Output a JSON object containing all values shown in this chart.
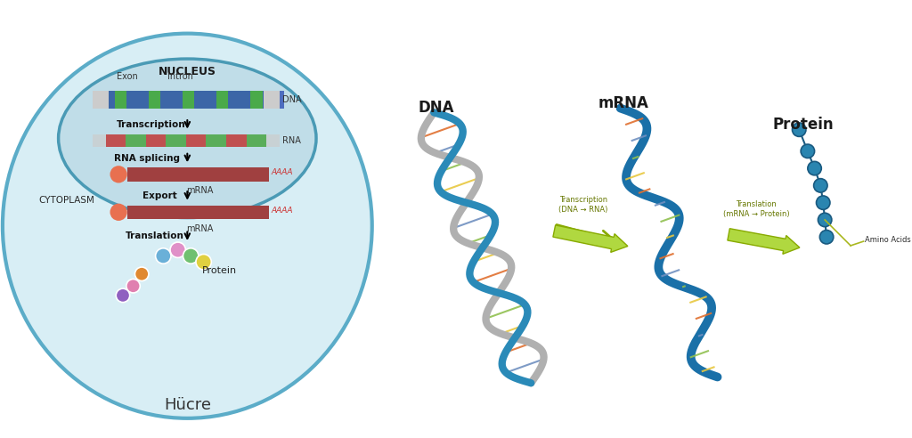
{
  "background_color": "#ffffff",
  "title_bottom": "Hücre",
  "cell_bg": "#d8eef5",
  "nucleus_bg": "#c0dde8",
  "cell_border": "#5bacc8",
  "nucleus_border": "#4a9ab5",
  "nucleus_label": "NUCLEUS",
  "cytoplasm_label": "CYTOPLASM",
  "dna_label": "DNA",
  "rna_label": "RNA",
  "mrna_label": "mRNA",
  "protein_label": "Protein",
  "exon_label": "Exon",
  "intron_label": "Intron",
  "step_labels": [
    "Transcription",
    "RNA splicing",
    "Export",
    "Translation"
  ],
  "right_labels": [
    "DNA",
    "mRNA",
    "Protein"
  ],
  "right_arrow1": "Transcription\n(DNA → RNA)",
  "right_arrow2": "Translation\n(mRNA → Protein)",
  "amino_acids_label": "Amino Acids",
  "dna_colors": [
    "#4a7fd4",
    "#5aad5a",
    "#4a7fd4",
    "#5aad5a",
    "#4a7fd4",
    "#5aad5a"
  ],
  "rna_colors": [
    "#c05050",
    "#5aad5a",
    "#c05050",
    "#5aad5a",
    "#c05050",
    "#5aad5a",
    "#c05050",
    "#5aad5a"
  ],
  "mrna_bar_color": "#a04040",
  "mrna_cap_color": "#e87050",
  "protein_bead_colors": [
    "#6ab0d8",
    "#e090c8",
    "#70c070",
    "#e0d040",
    "#e08830",
    "#e080b0",
    "#9060c0"
  ]
}
